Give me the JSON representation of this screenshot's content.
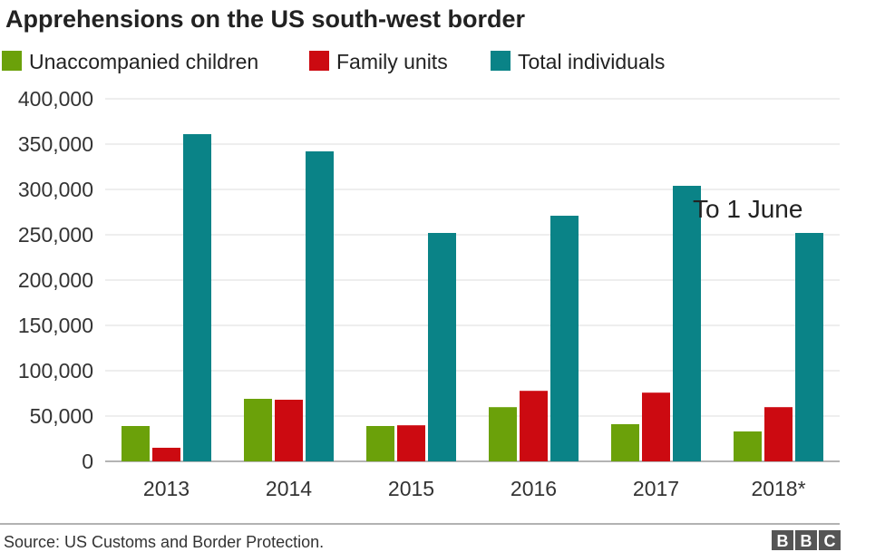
{
  "chart_data": {
    "type": "bar",
    "title": "Apprehensions on the US south-west border",
    "categories": [
      "2013",
      "2014",
      "2015",
      "2016",
      "2017",
      "2018*"
    ],
    "series": [
      {
        "name": "Unaccompanied children",
        "color": "#6ba10a",
        "values": [
          39000,
          69000,
          39000,
          59800,
          41000,
          33000
        ]
      },
      {
        "name": "Family units",
        "color": "#cc0a11",
        "values": [
          15000,
          68000,
          39800,
          77800,
          75800,
          59800
        ]
      },
      {
        "name": "Total individuals",
        "color": "#0a8387",
        "values": [
          361000,
          342000,
          252000,
          271000,
          304000,
          252000
        ]
      }
    ],
    "ylim": [
      0,
      400000
    ],
    "yticks": [
      "0",
      "50,000",
      "100,000",
      "150,000",
      "200,000",
      "250,000",
      "300,000",
      "350,000",
      "400,000"
    ],
    "grid": true,
    "legend": "top-left",
    "annotation": "To 1 June"
  },
  "footer": {
    "source": "Source: US Customs and Border Protection.",
    "logo": "BBC"
  }
}
